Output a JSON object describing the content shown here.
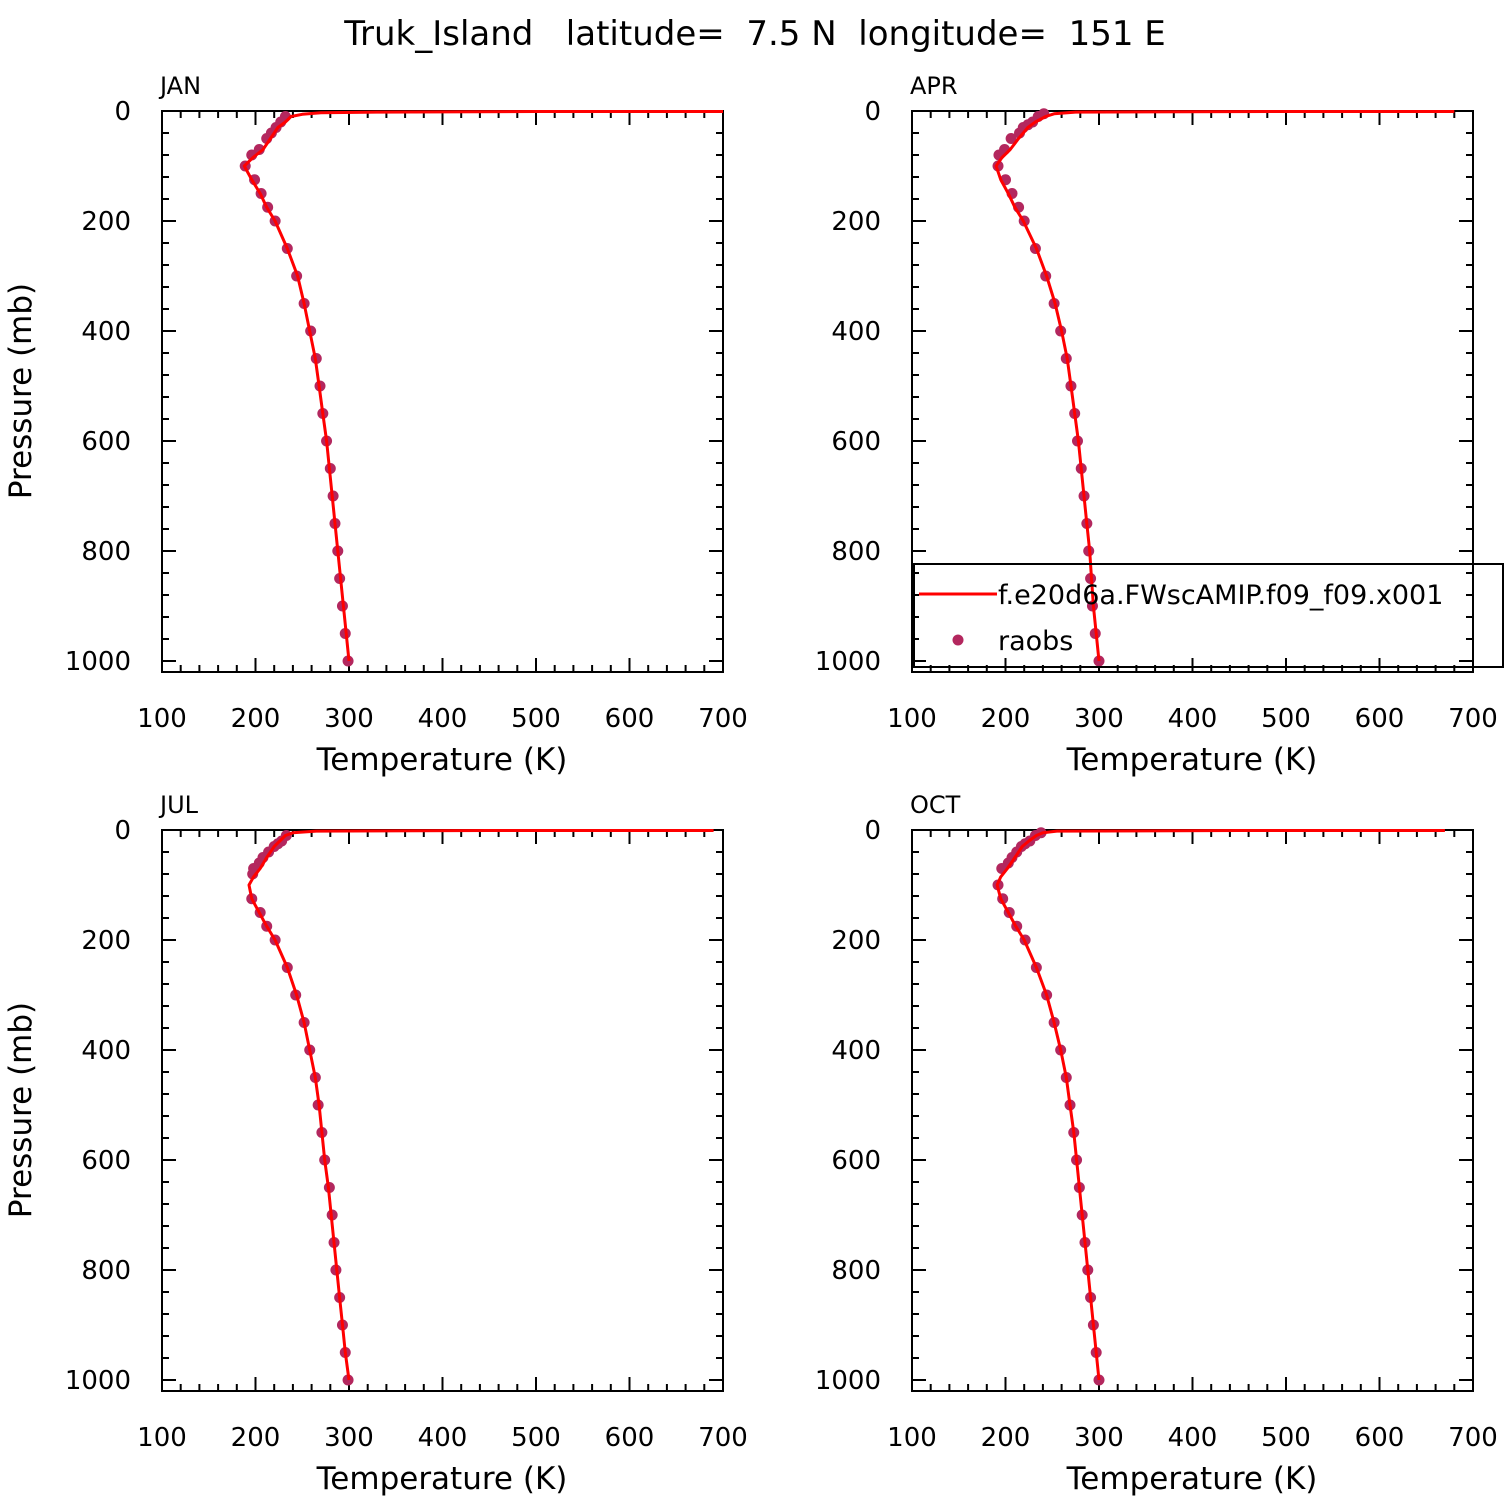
{
  "figure_title": "Truk_Island   latitude=  7.5 N  longitude=  151 E",
  "colors": {
    "model_line": "#ff0000",
    "obs_marker": "#b3275e",
    "axes": "#000000"
  },
  "legend": {
    "panel": 1,
    "entries": [
      {
        "label": "f.e20d6a.FWscAMIP.f09_f09.x001",
        "style": "line",
        "color": "#ff0000"
      },
      {
        "label": "raobs",
        "style": "marker",
        "color": "#b3275e"
      }
    ]
  },
  "chart_data": [
    {
      "type": "line",
      "title": "JAN",
      "xlabel": "Temperature (K)",
      "ylabel": "Pressure (mb)",
      "xlim": [
        100,
        700
      ],
      "ylim": [
        1020,
        0
      ],
      "y_reversed": true,
      "xticks": [
        "100",
        "200",
        "300",
        "400",
        "500",
        "600",
        "700"
      ],
      "yticks": [
        "0",
        "200",
        "400",
        "600",
        "800",
        "1000"
      ],
      "grid": false,
      "series": [
        {
          "name": "f.e20d6a.FWscAMIP.f09_f09.x001",
          "style": "line",
          "x": [
            700,
            500,
            330,
            270,
            250,
            238,
            232,
            224,
            216,
            208,
            197,
            188,
            196,
            205,
            212,
            221,
            234,
            245,
            252,
            258,
            264,
            268,
            272,
            276,
            279,
            282,
            285,
            288,
            291,
            294,
            297,
            300
          ],
          "y": [
            1,
            1,
            2,
            3,
            6,
            10,
            20,
            30,
            50,
            70,
            85,
            100,
            125,
            150,
            175,
            200,
            250,
            300,
            350,
            400,
            450,
            500,
            550,
            600,
            650,
            700,
            750,
            800,
            850,
            900,
            950,
            1000
          ]
        },
        {
          "name": "raobs",
          "style": "marker",
          "x": [
            232,
            227,
            222,
            217,
            212,
            204,
            196,
            189,
            199,
            206,
            213,
            221,
            234,
            244,
            252,
            259,
            265,
            269,
            272,
            276,
            280,
            283,
            285,
            288,
            290,
            293,
            296,
            299
          ],
          "y": [
            10,
            20,
            30,
            40,
            50,
            70,
            80,
            100,
            125,
            150,
            175,
            200,
            250,
            300,
            350,
            400,
            450,
            500,
            550,
            600,
            650,
            700,
            750,
            800,
            850,
            900,
            950,
            1000
          ]
        }
      ]
    },
    {
      "type": "line",
      "title": "APR",
      "xlabel": "Temperature (K)",
      "ylabel": "",
      "xlim": [
        100,
        700
      ],
      "ylim": [
        1020,
        0
      ],
      "y_reversed": true,
      "xticks": [
        "100",
        "200",
        "300",
        "400",
        "500",
        "600",
        "700"
      ],
      "yticks": [
        "0",
        "200",
        "400",
        "600",
        "800",
        "1000"
      ],
      "grid": false,
      "series": [
        {
          "name": "f.e20d6a.FWscAMIP.f09_f09.x001",
          "style": "line",
          "x": [
            680,
            500,
            275,
            252,
            243,
            232,
            224,
            214,
            205,
            196,
            190,
            195,
            203,
            210,
            219,
            233,
            244,
            253,
            260,
            266,
            270,
            274,
            278,
            281,
            284,
            287,
            290,
            292,
            294,
            297,
            300
          ],
          "y": [
            1,
            1,
            2,
            5,
            10,
            20,
            30,
            50,
            70,
            85,
            100,
            125,
            150,
            175,
            200,
            250,
            300,
            350,
            400,
            450,
            500,
            550,
            600,
            650,
            700,
            750,
            800,
            850,
            900,
            950,
            1000
          ]
        },
        {
          "name": "raobs",
          "style": "marker",
          "x": [
            241,
            235,
            229,
            224,
            219,
            215,
            206,
            199,
            193,
            192,
            200,
            207,
            214,
            220,
            232,
            243,
            252,
            259,
            265,
            270,
            274,
            277,
            281,
            284,
            287,
            289,
            291,
            293,
            296,
            300
          ],
          "y": [
            5,
            10,
            20,
            25,
            30,
            40,
            50,
            70,
            80,
            100,
            125,
            150,
            175,
            200,
            250,
            300,
            350,
            400,
            450,
            500,
            550,
            600,
            650,
            700,
            750,
            800,
            850,
            900,
            950,
            1000
          ]
        }
      ]
    },
    {
      "type": "line",
      "title": "JUL",
      "xlabel": "Temperature (K)",
      "ylabel": "Pressure (mb)",
      "xlim": [
        100,
        700
      ],
      "ylim": [
        1020,
        0
      ],
      "y_reversed": true,
      "xticks": [
        "100",
        "200",
        "300",
        "400",
        "500",
        "600",
        "700"
      ],
      "yticks": [
        "0",
        "200",
        "400",
        "600",
        "800",
        "1000"
      ],
      "grid": false,
      "series": [
        {
          "name": "f.e20d6a.FWscAMIP.f09_f09.x001",
          "style": "line",
          "x": [
            690,
            450,
            265,
            240,
            232,
            226,
            220,
            212,
            205,
            198,
            193,
            196,
            204,
            212,
            221,
            234,
            244,
            252,
            258,
            264,
            268,
            271,
            274,
            278,
            281,
            284,
            287,
            290,
            293,
            296,
            300
          ],
          "y": [
            1,
            1,
            2,
            5,
            10,
            20,
            30,
            50,
            70,
            85,
            100,
            125,
            150,
            175,
            200,
            250,
            300,
            350,
            400,
            450,
            500,
            550,
            600,
            650,
            700,
            750,
            800,
            850,
            900,
            950,
            1000
          ]
        },
        {
          "name": "raobs",
          "style": "marker",
          "x": [
            233,
            228,
            224,
            220,
            214,
            208,
            204,
            198,
            197,
            196,
            205,
            212,
            221,
            234,
            243,
            252,
            258,
            264,
            267,
            271,
            274,
            279,
            282,
            284,
            286,
            290,
            293,
            296,
            299
          ],
          "y": [
            10,
            20,
            25,
            30,
            40,
            50,
            60,
            70,
            80,
            125,
            150,
            175,
            200,
            250,
            300,
            350,
            400,
            450,
            500,
            550,
            600,
            650,
            700,
            750,
            800,
            850,
            900,
            950,
            1000
          ]
        }
      ]
    },
    {
      "type": "line",
      "title": "OCT",
      "xlabel": "Temperature (K)",
      "ylabel": "",
      "xlim": [
        100,
        700
      ],
      "ylim": [
        1020,
        0
      ],
      "y_reversed": true,
      "xticks": [
        "100",
        "200",
        "300",
        "400",
        "500",
        "600",
        "700"
      ],
      "yticks": [
        "0",
        "200",
        "400",
        "600",
        "800",
        "1000"
      ],
      "grid": false,
      "series": [
        {
          "name": "f.e20d6a.FWscAMIP.f09_f09.x001",
          "style": "line",
          "x": [
            670,
            450,
            255,
            240,
            233,
            225,
            218,
            210,
            202,
            195,
            191,
            195,
            203,
            211,
            220,
            233,
            244,
            252,
            259,
            265,
            269,
            273,
            276,
            279,
            282,
            285,
            288,
            291,
            294,
            297,
            300
          ],
          "y": [
            1,
            1,
            2,
            5,
            10,
            20,
            30,
            50,
            70,
            85,
            100,
            125,
            150,
            175,
            200,
            250,
            300,
            350,
            400,
            450,
            500,
            550,
            600,
            650,
            700,
            750,
            800,
            850,
            900,
            950,
            1000
          ]
        },
        {
          "name": "raobs",
          "style": "marker",
          "x": [
            238,
            232,
            226,
            221,
            217,
            212,
            207,
            203,
            196,
            192,
            197,
            204,
            212,
            221,
            233,
            244,
            252,
            259,
            265,
            269,
            273,
            276,
            279,
            282,
            285,
            288,
            291,
            294,
            297,
            300
          ],
          "y": [
            5,
            10,
            20,
            25,
            30,
            40,
            50,
            60,
            70,
            100,
            125,
            150,
            175,
            200,
            250,
            300,
            350,
            400,
            450,
            500,
            550,
            600,
            650,
            700,
            750,
            800,
            850,
            900,
            950,
            1000
          ]
        }
      ]
    }
  ]
}
